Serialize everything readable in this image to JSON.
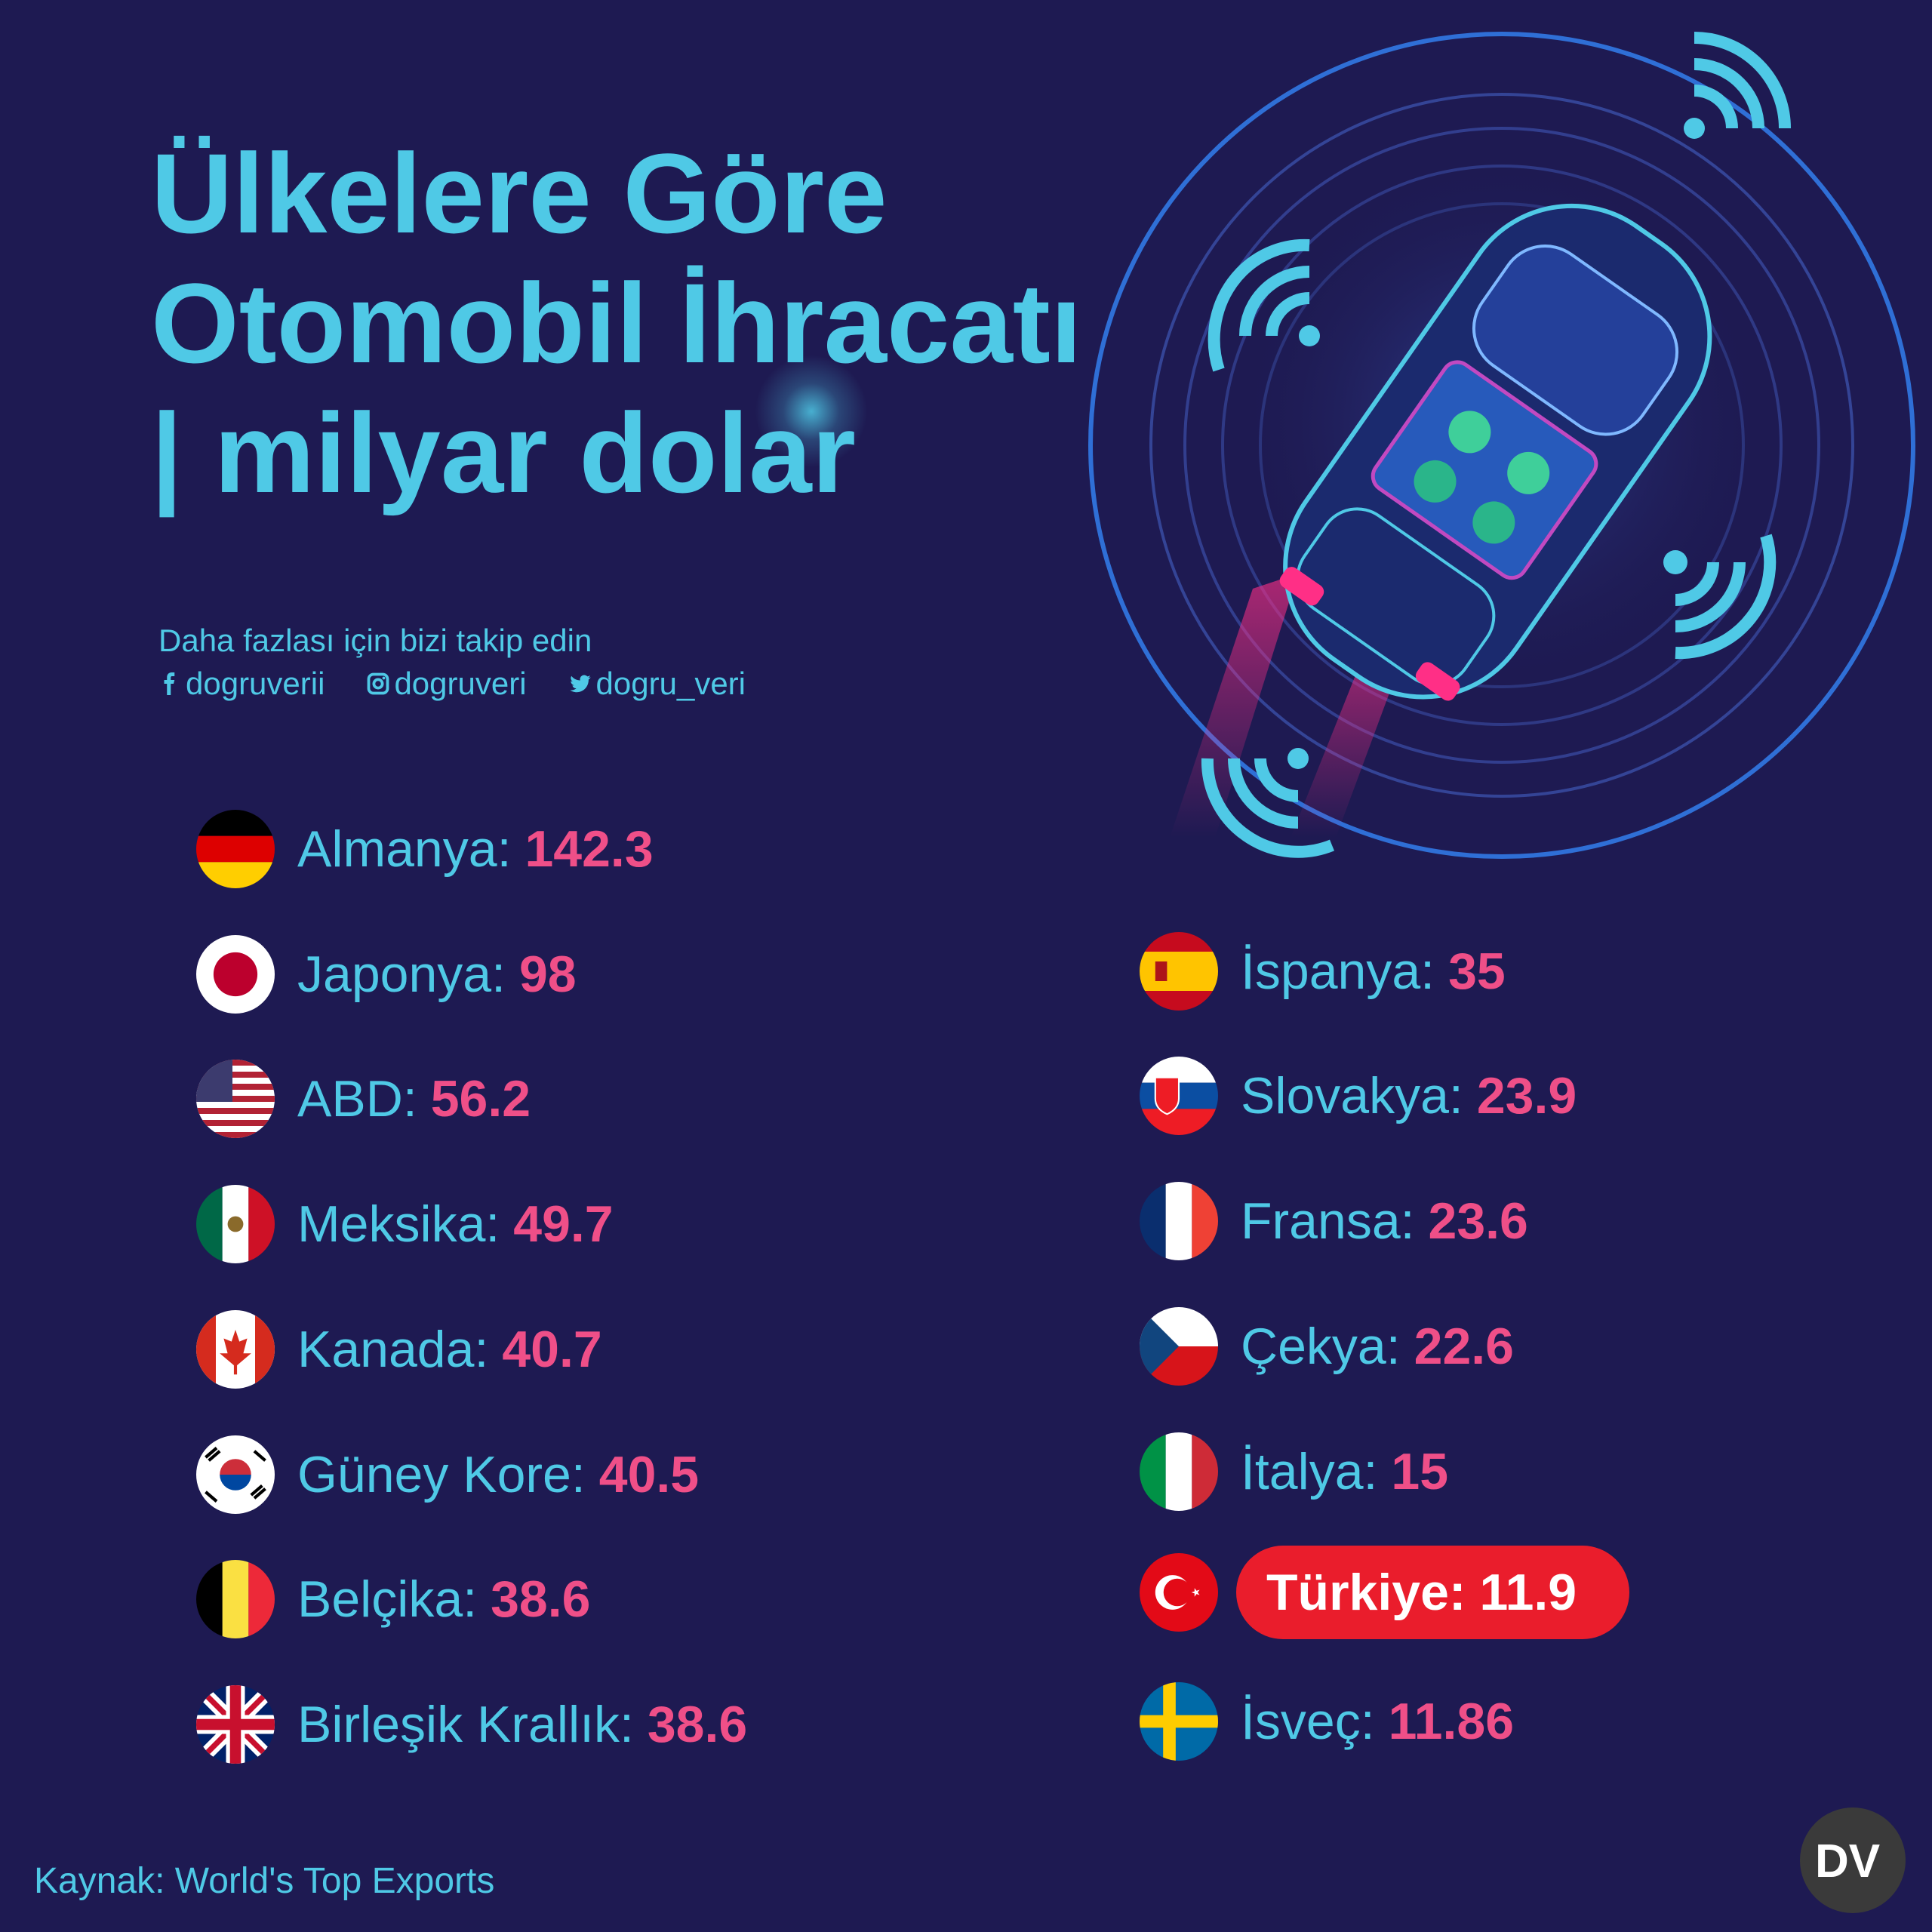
{
  "title": {
    "line1": "Ülkelere Göre",
    "line2": "Otomobil İhracatı",
    "line3": "| milyar dolar"
  },
  "follow_text": "Daha fazlası için bizi takip edin",
  "socials": [
    {
      "icon": "facebook-icon",
      "handle": "dogruverii"
    },
    {
      "icon": "instagram-icon",
      "handle": "dogruveri"
    },
    {
      "icon": "twitter-icon",
      "handle": "dogru_veri"
    }
  ],
  "chart_data": {
    "type": "table",
    "unit": "milyar dolar",
    "categories": [
      "Almanya",
      "Japonya",
      "ABD",
      "Meksika",
      "Kanada",
      "Güney Kore",
      "Belçika",
      "Birleşik Krallık",
      "İspanya",
      "Slovakya",
      "Fransa",
      "Çekya",
      "İtalya",
      "Türkiye",
      "İsveç"
    ],
    "values": [
      142.3,
      98,
      56.2,
      49.7,
      40.7,
      40.5,
      38.6,
      38.6,
      35,
      23.9,
      23.6,
      22.6,
      15,
      11.9,
      11.86
    ],
    "highlighted": "Türkiye"
  },
  "countries": [
    {
      "name": "Almanya",
      "label": "Almanya:",
      "value": "142.3",
      "flag": "germany-flag-icon"
    },
    {
      "name": "Japonya",
      "label": "Japonya:",
      "value": "98",
      "flag": "japan-flag-icon"
    },
    {
      "name": "ABD",
      "label": "ABD:",
      "value": "56.2",
      "flag": "usa-flag-icon"
    },
    {
      "name": "Meksika",
      "label": "Meksika:",
      "value": "49.7",
      "flag": "mexico-flag-icon"
    },
    {
      "name": "Kanada",
      "label": "Kanada:",
      "value": "40.7",
      "flag": "canada-flag-icon"
    },
    {
      "name": "Güney Kore",
      "label": "Güney Kore:",
      "value": "40.5",
      "flag": "south-korea-flag-icon"
    },
    {
      "name": "Belçika",
      "label": "Belçika:",
      "value": "38.6",
      "flag": "belgium-flag-icon"
    },
    {
      "name": "Birleşik Krallık",
      "label": "Birleşik Krallık:",
      "value": "38.6",
      "flag": "uk-flag-icon"
    },
    {
      "name": "İspanya",
      "label": "İspanya:",
      "value": "35",
      "flag": "spain-flag-icon"
    },
    {
      "name": "Slovakya",
      "label": "Slovakya:",
      "value": "23.9",
      "flag": "slovakia-flag-icon"
    },
    {
      "name": "Fransa",
      "label": "Fransa:",
      "value": "23.6",
      "flag": "france-flag-icon"
    },
    {
      "name": "Çekya",
      "label": "Çekya:",
      "value": "22.6",
      "flag": "czechia-flag-icon"
    },
    {
      "name": "İtalya",
      "label": "İtalya:",
      "value": "15",
      "flag": "italy-flag-icon"
    },
    {
      "name": "Türkiye",
      "label": "Türkiye:",
      "value": "11.9",
      "flag": "turkey-flag-icon"
    },
    {
      "name": "İsveç",
      "label": "İsveç:",
      "value": "11.86",
      "flag": "sweden-flag-icon"
    }
  ],
  "source": "Kaynak: World's Top Exports",
  "logo_text": "DV",
  "colors": {
    "background": "#1e1a52",
    "accent_cyan": "#4fc9e6",
    "value_pink": "#ef4f88",
    "highlight_red": "#ea1d2c"
  }
}
